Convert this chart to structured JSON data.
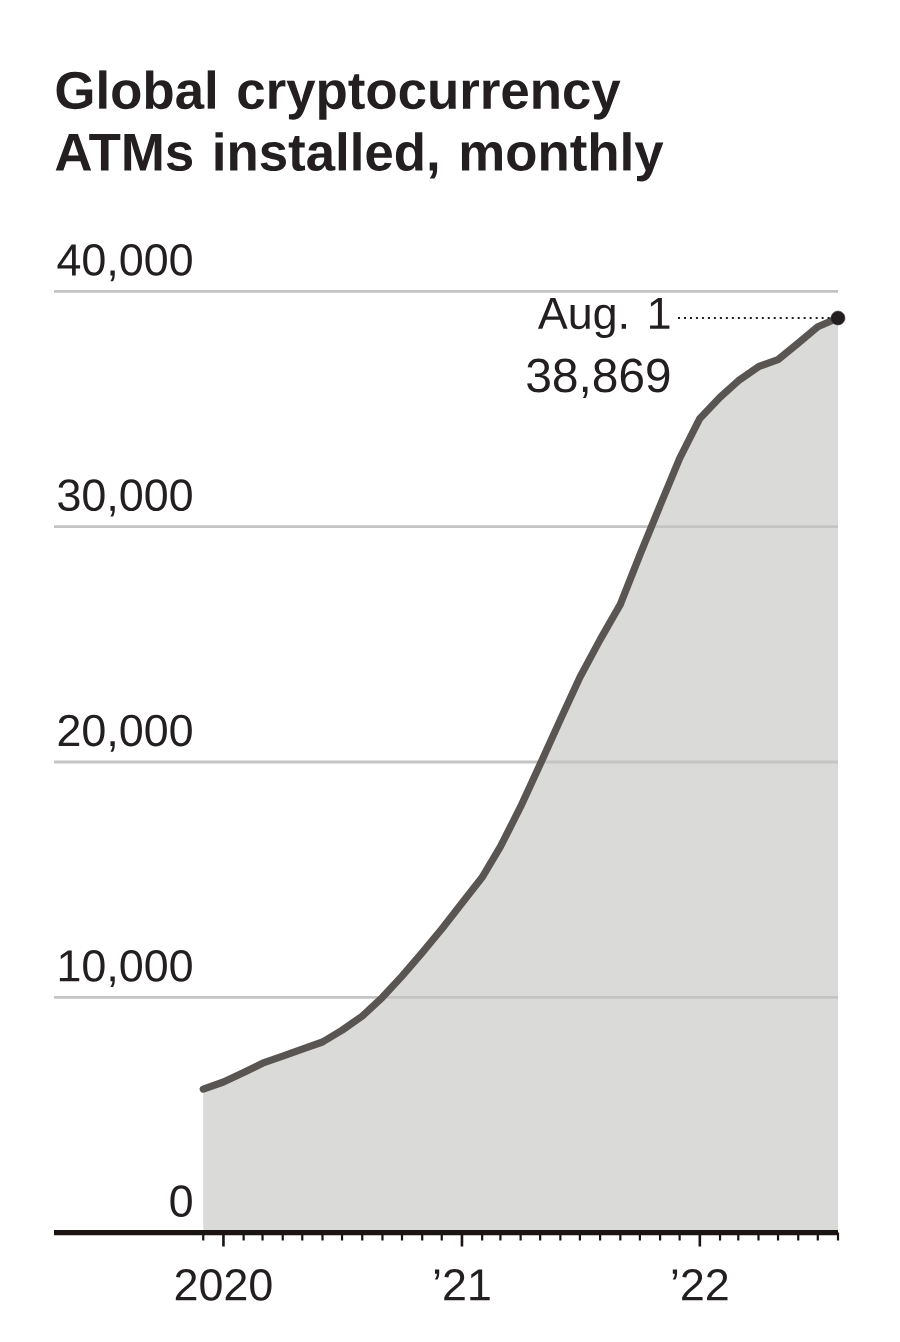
{
  "chart_data": {
    "type": "area",
    "title": "Global cryptocurrency ATMs installed, monthly",
    "x": [
      "2019-12",
      "2020-01",
      "2020-02",
      "2020-03",
      "2020-04",
      "2020-05",
      "2020-06",
      "2020-07",
      "2020-08",
      "2020-09",
      "2020-10",
      "2020-11",
      "2020-12",
      "2021-01",
      "2021-02",
      "2021-03",
      "2021-04",
      "2021-05",
      "2021-06",
      "2021-07",
      "2021-08",
      "2021-09",
      "2021-10",
      "2021-11",
      "2021-12",
      "2022-01",
      "2022-02",
      "2022-03",
      "2022-04",
      "2022-05",
      "2022-06",
      "2022-07",
      "2022-08"
    ],
    "series": [
      {
        "color": "#595552",
        "values": [
          6100,
          6400,
          6800,
          7200,
          7500,
          7800,
          8100,
          8600,
          9200,
          10000,
          10900,
          11900,
          12900,
          14000,
          15100,
          16400,
          18100,
          19900,
          21800,
          23600,
          25200,
          26700,
          28800,
          30900,
          32900,
          34600,
          35500,
          36200,
          36800,
          37100,
          37800,
          38500,
          38869
        ]
      },
      {
        "type": "scatter",
        "x": [
          "2022-08-01"
        ],
        "values": [
          38869
        ],
        "color": "#231f20",
        "marker": "circle",
        "value_labels": [
          "38,869"
        ]
      }
    ],
    "xlim": [
      "2019-04-16",
      "2022-08-01"
    ],
    "xticks": [
      {
        "value": "2019-12",
        "label": null
      },
      {
        "value": "2020-01",
        "label": "2020"
      },
      {
        "value": "2020-02",
        "label": null
      },
      {
        "value": "2020-03",
        "label": null
      },
      {
        "value": "2020-04",
        "label": null
      },
      {
        "value": "2020-05",
        "label": null
      },
      {
        "value": "2020-06",
        "label": null
      },
      {
        "value": "2020-07",
        "label": null
      },
      {
        "value": "2020-08",
        "label": null
      },
      {
        "value": "2020-09",
        "label": null
      },
      {
        "value": "2020-10",
        "label": null
      },
      {
        "value": "2020-11",
        "label": null
      },
      {
        "value": "2020-12",
        "label": null
      },
      {
        "value": "2021-01",
        "label": "’21"
      },
      {
        "value": "2021-02",
        "label": null
      },
      {
        "value": "2021-03",
        "label": null
      },
      {
        "value": "2021-04",
        "label": null
      },
      {
        "value": "2021-05",
        "label": null
      },
      {
        "value": "2021-06",
        "label": null
      },
      {
        "value": "2021-07",
        "label": null
      },
      {
        "value": "2021-08",
        "label": null
      },
      {
        "value": "2021-09",
        "label": null
      },
      {
        "value": "2021-10",
        "label": null
      },
      {
        "value": "2021-11",
        "label": null
      },
      {
        "value": "2021-12",
        "label": null
      },
      {
        "value": "2022-01",
        "label": "’22"
      },
      {
        "value": "2022-02",
        "label": null
      },
      {
        "value": "2022-03",
        "label": null
      },
      {
        "value": "2022-04",
        "label": null
      },
      {
        "value": "2022-05",
        "label": null
      },
      {
        "value": "2022-06",
        "label": null
      },
      {
        "value": "2022-07",
        "label": null
      },
      {
        "value": "2022-08",
        "label": null
      }
    ],
    "ylim": [
      0,
      40000
    ],
    "yticks": [
      0,
      {
        "value": 10000,
        "label": "10,000"
      },
      {
        "value": 20000,
        "label": "20,000"
      },
      {
        "value": 30000,
        "label": "30,000"
      },
      {
        "value": 40000,
        "label": "40,000"
      }
    ],
    "grid": "y",
    "annotations": [
      {
        "text": "Aug. 1",
        "x": "2022-08-01",
        "y": 38869
      }
    ]
  }
}
